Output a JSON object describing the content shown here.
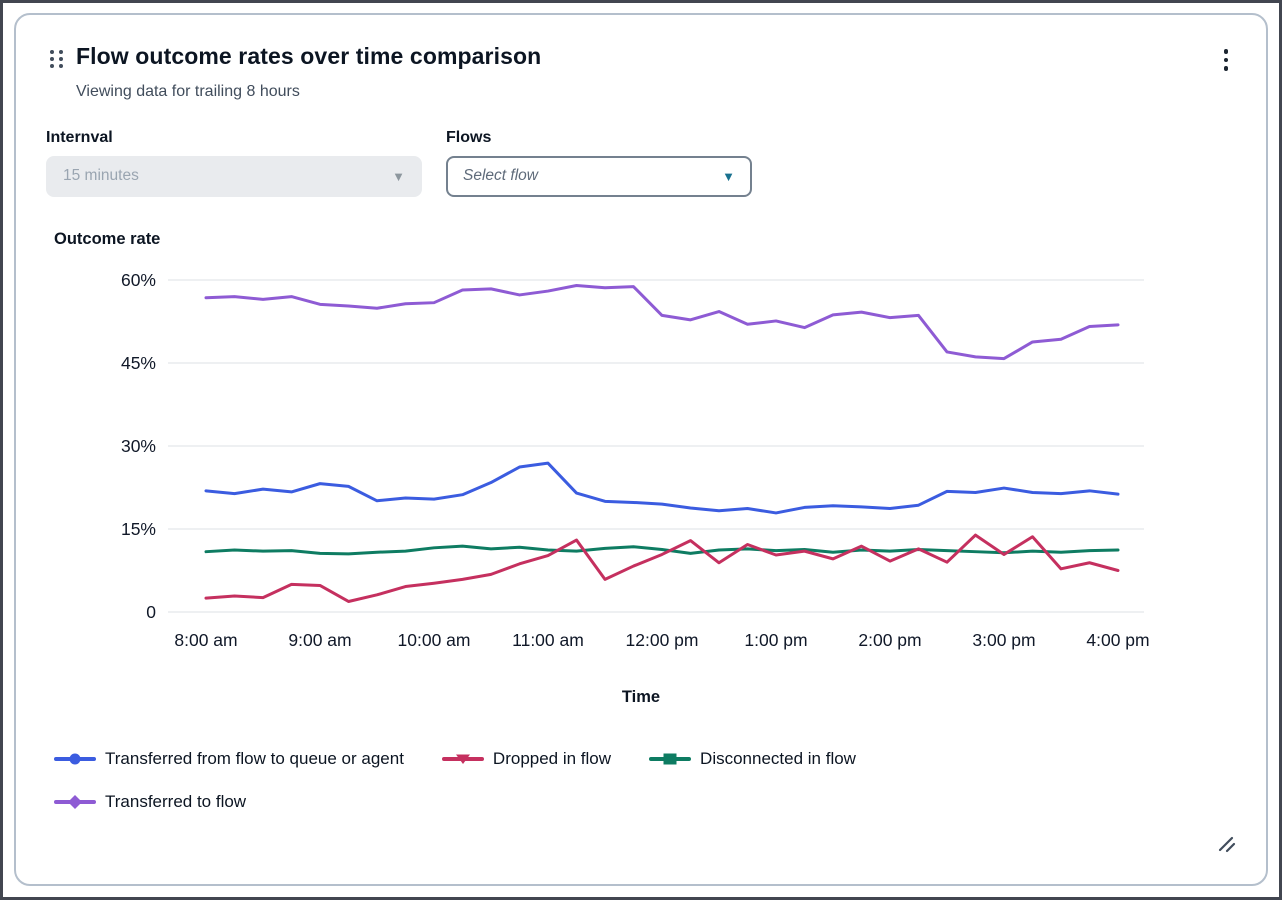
{
  "widget": {
    "title": "Flow outcome rates over time comparison",
    "subtitle": "Viewing data for trailing 8 hours"
  },
  "icons": {
    "drag_handle": "drag-handle-icon",
    "kebab_menu": "kebab-menu-icon",
    "caret_down": "▼",
    "resize": "resize-handle-icon"
  },
  "controls": {
    "interval": {
      "label": "Internval",
      "value": "15 minutes",
      "state": "disabled"
    },
    "flows": {
      "label": "Flows",
      "placeholder": "Select flow",
      "state": "enabled"
    }
  },
  "chart_data": {
    "type": "line",
    "title": "Outcome rate",
    "xlabel": "Time",
    "ylabel": "Outcome rate",
    "grid": "horizontal",
    "legend_position": "bottom-left",
    "legend_rows": [
      [
        0,
        1,
        2
      ],
      [
        3
      ]
    ],
    "interval_minutes": 15,
    "x_points": 33,
    "x_tick_every": 4,
    "x_tick_labels": [
      "8:00 am",
      "9:00 am",
      "10:00 am",
      "11:00 am",
      "12:00 pm",
      "1:00 pm",
      "2:00 pm",
      "3:00 pm",
      "4:00 pm"
    ],
    "y_ticks": [
      0,
      15,
      30,
      45,
      60
    ],
    "y_tick_labels": [
      "0",
      "15%",
      "30%",
      "45%",
      "60%"
    ],
    "ylim": [
      0,
      62
    ],
    "unit": "%",
    "colors": {
      "grid": "#e9ebed",
      "tick_text": "#101828"
    },
    "series": [
      {
        "name": "Transferred from flow to queue or agent",
        "color": "#3b5ce0",
        "marker": "circle",
        "values": [
          21.9,
          21.4,
          22.2,
          21.7,
          23.2,
          22.7,
          20.1,
          20.6,
          20.4,
          21.2,
          23.4,
          26.2,
          26.9,
          21.5,
          20.0,
          19.8,
          19.5,
          18.8,
          18.3,
          18.7,
          17.9,
          18.9,
          19.2,
          19.0,
          18.7,
          19.3,
          21.8,
          21.6,
          22.4,
          21.6,
          21.4,
          21.9,
          21.3
        ]
      },
      {
        "name": "Dropped in flow",
        "color": "#c5305f",
        "marker": "triangle-down",
        "values": [
          2.5,
          2.9,
          2.6,
          5.0,
          4.8,
          1.9,
          3.1,
          4.6,
          5.2,
          5.9,
          6.8,
          8.7,
          10.2,
          13.0,
          5.9,
          8.3,
          10.4,
          12.9,
          8.9,
          12.2,
          10.3,
          11.0,
          9.6,
          11.9,
          9.2,
          11.4,
          9.0,
          13.9,
          10.4,
          13.6,
          7.8,
          8.9,
          7.5
        ]
      },
      {
        "name": "Disconnected in flow",
        "color": "#0e7c62",
        "marker": "square",
        "values": [
          10.9,
          11.2,
          11.0,
          11.1,
          10.6,
          10.5,
          10.8,
          11.0,
          11.6,
          11.9,
          11.4,
          11.7,
          11.2,
          11.0,
          11.5,
          11.8,
          11.3,
          10.6,
          11.2,
          11.4,
          11.1,
          11.3,
          10.8,
          11.2,
          11.0,
          11.3,
          11.1,
          10.9,
          10.7,
          11.0,
          10.8,
          11.1,
          11.2
        ]
      },
      {
        "name": "Transferred to flow",
        "color": "#8e5bd4",
        "marker": "diamond",
        "values": [
          56.8,
          57.0,
          56.5,
          57.0,
          55.6,
          55.3,
          54.9,
          55.7,
          55.9,
          58.2,
          58.4,
          57.3,
          58.0,
          59.0,
          58.6,
          58.8,
          53.6,
          52.8,
          54.3,
          52.0,
          52.6,
          51.4,
          53.7,
          54.2,
          53.2,
          53.6,
          47.0,
          46.1,
          45.8,
          48.8,
          49.3,
          51.6,
          51.9
        ]
      }
    ]
  }
}
